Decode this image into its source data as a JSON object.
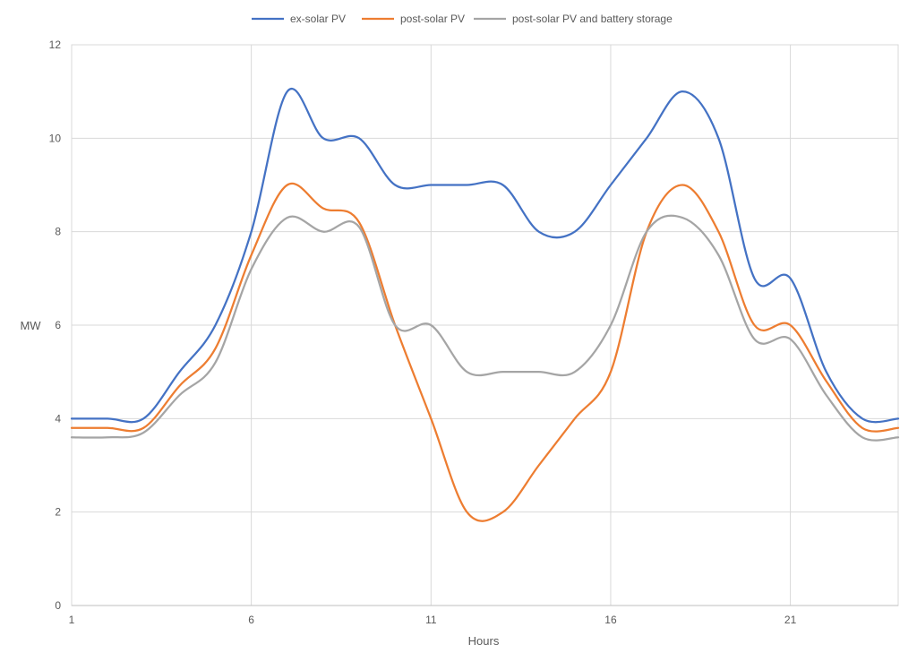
{
  "chart_data": {
    "type": "line",
    "title": "",
    "xlabel": "Hours",
    "ylabel": "MW",
    "xlim": [
      1,
      24
    ],
    "ylim": [
      0,
      12
    ],
    "x_ticks": [
      1,
      6,
      11,
      16,
      21
    ],
    "y_ticks": [
      0,
      2,
      4,
      6,
      8,
      10,
      12
    ],
    "grid": true,
    "legend_position": "top",
    "x": [
      1,
      2,
      3,
      4,
      5,
      6,
      7,
      8,
      9,
      10,
      11,
      12,
      13,
      14,
      15,
      16,
      17,
      18,
      19,
      20,
      21,
      22,
      23,
      24
    ],
    "series": [
      {
        "name": "ex-solar PV",
        "color": "#4472c4",
        "values": [
          4.0,
          4.0,
          4.0,
          5.0,
          6.0,
          8.0,
          11.0,
          10.0,
          10.0,
          9.0,
          9.0,
          9.0,
          9.0,
          8.0,
          8.0,
          9.0,
          10.0,
          11.0,
          10.0,
          7.0,
          7.0,
          5.0,
          4.0,
          4.0
        ]
      },
      {
        "name": "post-solar PV",
        "color": "#ed7d31",
        "values": [
          3.8,
          3.8,
          3.8,
          4.7,
          5.5,
          7.5,
          9.0,
          8.5,
          8.2,
          6.0,
          4.0,
          2.0,
          2.0,
          3.0,
          4.0,
          5.0,
          8.0,
          9.0,
          8.0,
          6.0,
          6.0,
          4.8,
          3.8,
          3.8
        ]
      },
      {
        "name": "post-solar PV and battery storage",
        "color": "#a5a5a5",
        "values": [
          3.6,
          3.6,
          3.7,
          4.5,
          5.2,
          7.2,
          8.3,
          8.0,
          8.1,
          6.0,
          6.0,
          5.0,
          5.0,
          5.0,
          5.0,
          6.0,
          8.0,
          8.3,
          7.5,
          5.7,
          5.7,
          4.5,
          3.6,
          3.6
        ]
      }
    ]
  }
}
